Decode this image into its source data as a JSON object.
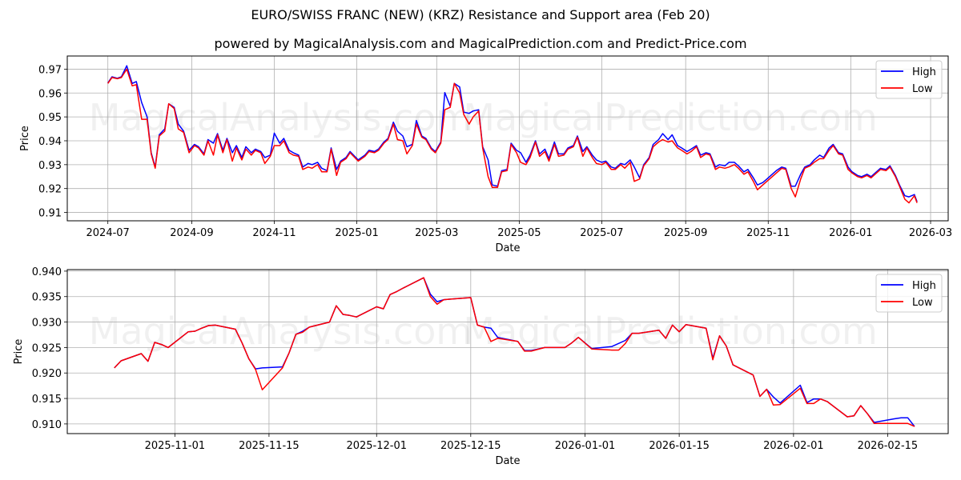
{
  "header": {
    "title": "EURO/SWISS FRANC (NEW) (KRZ) Resistance and Support area (Feb 20)",
    "subtitle": "powered by MagicalAnalysis.com and MagicalPrediction.com and Predict-Price.com"
  },
  "watermarks": [
    "MagicalAnalysis.com",
    "MagicalPrediction.com"
  ],
  "colors": {
    "high": "#0000ff",
    "low": "#ff0000",
    "grid": "#b0b0b0"
  },
  "chart_data": [
    {
      "type": "line",
      "title": "Full history",
      "xlabel": "Date",
      "ylabel": "Price",
      "grid": true,
      "legend_position": "upper right",
      "ylim": [
        0.9065,
        0.9755
      ],
      "xlim": [
        "2024-06-01",
        "2026-03-14"
      ],
      "x_ticks": [
        "2024-07",
        "2024-09",
        "2024-11",
        "2025-01",
        "2025-03",
        "2025-05",
        "2025-07",
        "2025-09",
        "2025-11",
        "2026-01",
        "2026-03"
      ],
      "y_ticks": [
        "0.91",
        "0.92",
        "0.93",
        "0.94",
        "0.95",
        "0.96",
        "0.97"
      ],
      "x": [
        "2024-07-01",
        "2024-07-04",
        "2024-07-08",
        "2024-07-11",
        "2024-07-15",
        "2024-07-19",
        "2024-07-22",
        "2024-07-26",
        "2024-07-30",
        "2024-08-02",
        "2024-08-05",
        "2024-08-08",
        "2024-08-12",
        "2024-08-15",
        "2024-08-19",
        "2024-08-22",
        "2024-08-26",
        "2024-08-30",
        "2024-09-03",
        "2024-09-06",
        "2024-09-10",
        "2024-09-13",
        "2024-09-17",
        "2024-09-20",
        "2024-09-24",
        "2024-09-27",
        "2024-10-01",
        "2024-10-04",
        "2024-10-08",
        "2024-10-11",
        "2024-10-15",
        "2024-10-18",
        "2024-10-22",
        "2024-10-25",
        "2024-10-29",
        "2024-11-01",
        "2024-11-05",
        "2024-11-08",
        "2024-11-12",
        "2024-11-15",
        "2024-11-19",
        "2024-11-22",
        "2024-11-26",
        "2024-11-29",
        "2024-12-03",
        "2024-12-06",
        "2024-12-10",
        "2024-12-13",
        "2024-12-17",
        "2024-12-20",
        "2024-12-24",
        "2024-12-27",
        "2025-01-02",
        "2025-01-07",
        "2025-01-10",
        "2025-01-14",
        "2025-01-17",
        "2025-01-21",
        "2025-01-24",
        "2025-01-28",
        "2025-01-31",
        "2025-02-04",
        "2025-02-07",
        "2025-02-11",
        "2025-02-14",
        "2025-02-18",
        "2025-02-21",
        "2025-02-25",
        "2025-02-28",
        "2025-03-04",
        "2025-03-07",
        "2025-03-11",
        "2025-03-14",
        "2025-03-18",
        "2025-03-21",
        "2025-03-25",
        "2025-03-28",
        "2025-04-01",
        "2025-04-04",
        "2025-04-08",
        "2025-04-11",
        "2025-04-15",
        "2025-04-18",
        "2025-04-22",
        "2025-04-25",
        "2025-04-29",
        "2025-05-02",
        "2025-05-06",
        "2025-05-09",
        "2025-05-13",
        "2025-05-16",
        "2025-05-20",
        "2025-05-23",
        "2025-05-27",
        "2025-05-30",
        "2025-06-03",
        "2025-06-06",
        "2025-06-10",
        "2025-06-13",
        "2025-06-17",
        "2025-06-20",
        "2025-06-24",
        "2025-06-27",
        "2025-07-01",
        "2025-07-04",
        "2025-07-08",
        "2025-07-11",
        "2025-07-15",
        "2025-07-18",
        "2025-07-22",
        "2025-07-25",
        "2025-07-29",
        "2025-08-01",
        "2025-08-05",
        "2025-08-08",
        "2025-08-12",
        "2025-08-15",
        "2025-08-19",
        "2025-08-22",
        "2025-08-26",
        "2025-08-29",
        "2025-09-02",
        "2025-09-05",
        "2025-09-09",
        "2025-09-12",
        "2025-09-16",
        "2025-09-19",
        "2025-09-23",
        "2025-09-26",
        "2025-09-30",
        "2025-10-03",
        "2025-10-07",
        "2025-10-10",
        "2025-10-14",
        "2025-10-17",
        "2025-10-21",
        "2025-10-24",
        "2025-10-28",
        "2025-10-31",
        "2025-11-04",
        "2025-11-07",
        "2025-11-11",
        "2025-11-14",
        "2025-11-18",
        "2025-11-21",
        "2025-11-25",
        "2025-11-28",
        "2025-12-02",
        "2025-12-05",
        "2025-12-09",
        "2025-12-12",
        "2025-12-16",
        "2025-12-19",
        "2025-12-23",
        "2025-12-26",
        "2025-12-30",
        "2026-01-02",
        "2026-01-06",
        "2026-01-09",
        "2026-01-13",
        "2026-01-16",
        "2026-01-20",
        "2026-01-23",
        "2026-01-27",
        "2026-01-30",
        "2026-02-03",
        "2026-02-06",
        "2026-02-10",
        "2026-02-13",
        "2026-02-17",
        "2026-02-19"
      ],
      "series": [
        {
          "name": "High",
          "color": "#0000ff",
          "values": [
            0.9642,
            0.9668,
            0.9662,
            0.9668,
            0.9714,
            0.964,
            0.9648,
            0.956,
            0.95,
            0.935,
            0.929,
            0.9425,
            0.945,
            0.9555,
            0.954,
            0.947,
            0.944,
            0.936,
            0.9385,
            0.9375,
            0.9345,
            0.9405,
            0.939,
            0.943,
            0.936,
            0.941,
            0.935,
            0.938,
            0.933,
            0.9375,
            0.935,
            0.9365,
            0.9355,
            0.933,
            0.934,
            0.9432,
            0.939,
            0.941,
            0.936,
            0.935,
            0.934,
            0.929,
            0.9305,
            0.93,
            0.931,
            0.9285,
            0.9275,
            0.937,
            0.928,
            0.9315,
            0.933,
            0.9355,
            0.932,
            0.934,
            0.936,
            0.9355,
            0.9365,
            0.9395,
            0.941,
            0.9478,
            0.944,
            0.942,
            0.9375,
            0.9385,
            0.9485,
            0.942,
            0.941,
            0.937,
            0.9355,
            0.9395,
            0.9602,
            0.9545,
            0.964,
            0.9625,
            0.952,
            0.9515,
            0.9525,
            0.953,
            0.9375,
            0.932,
            0.9215,
            0.921,
            0.9275,
            0.928,
            0.939,
            0.936,
            0.935,
            0.931,
            0.934,
            0.94,
            0.9345,
            0.9365,
            0.9325,
            0.9395,
            0.9345,
            0.9345,
            0.937,
            0.938,
            0.942,
            0.9355,
            0.9375,
            0.934,
            0.932,
            0.931,
            0.9315,
            0.929,
            0.9285,
            0.9305,
            0.93,
            0.932,
            0.929,
            0.9245,
            0.93,
            0.933,
            0.9385,
            0.9405,
            0.943,
            0.9405,
            0.9425,
            0.938,
            0.937,
            0.9355,
            0.9365,
            0.938,
            0.934,
            0.935,
            0.9345,
            0.929,
            0.93,
            0.9295,
            0.931,
            0.931,
            0.9295,
            0.927,
            0.928,
            0.9245,
            0.9215,
            0.9225,
            0.924,
            0.926,
            0.9275,
            0.929,
            0.9285,
            0.921,
            0.921,
            0.926,
            0.929,
            0.93,
            0.932,
            0.934,
            0.933,
            0.937,
            0.9385,
            0.935,
            0.9345,
            0.929,
            0.927,
            0.9255,
            0.925,
            0.926,
            0.925,
            0.927,
            0.9285,
            0.928,
            0.9295,
            0.9255,
            0.9215,
            0.917,
            0.9165,
            0.9175,
            0.9145,
            0.9125,
            0.911,
            0.9112,
            0.91
          ]
        },
        {
          "name": "Low",
          "color": "#ff0000",
          "values": [
            0.964,
            0.9665,
            0.966,
            0.9665,
            0.97,
            0.963,
            0.9635,
            0.949,
            0.949,
            0.9345,
            0.9285,
            0.942,
            0.944,
            0.9555,
            0.9535,
            0.945,
            0.9435,
            0.935,
            0.938,
            0.937,
            0.934,
            0.94,
            0.934,
            0.9425,
            0.935,
            0.9405,
            0.9315,
            0.937,
            0.932,
            0.9365,
            0.934,
            0.936,
            0.935,
            0.9305,
            0.9335,
            0.938,
            0.938,
            0.94,
            0.935,
            0.934,
            0.9335,
            0.928,
            0.929,
            0.9285,
            0.93,
            0.927,
            0.927,
            0.9365,
            0.9255,
            0.931,
            0.9325,
            0.935,
            0.9315,
            0.9335,
            0.9355,
            0.935,
            0.936,
            0.939,
            0.9405,
            0.947,
            0.9405,
            0.94,
            0.9345,
            0.938,
            0.947,
            0.9415,
            0.9405,
            0.9365,
            0.935,
            0.939,
            0.953,
            0.954,
            0.964,
            0.96,
            0.951,
            0.947,
            0.95,
            0.9525,
            0.937,
            0.925,
            0.9205,
            0.9205,
            0.927,
            0.9275,
            0.9385,
            0.935,
            0.931,
            0.93,
            0.933,
            0.9395,
            0.9335,
            0.9355,
            0.9315,
            0.9385,
            0.9335,
            0.934,
            0.9365,
            0.9375,
            0.9415,
            0.9335,
            0.937,
            0.933,
            0.9305,
            0.93,
            0.931,
            0.928,
            0.928,
            0.93,
            0.9285,
            0.931,
            0.923,
            0.924,
            0.9295,
            0.9325,
            0.9375,
            0.9395,
            0.9405,
            0.9395,
            0.94,
            0.937,
            0.936,
            0.9345,
            0.9355,
            0.9375,
            0.933,
            0.9345,
            0.934,
            0.928,
            0.929,
            0.9285,
            0.929,
            0.93,
            0.9285,
            0.926,
            0.927,
            0.923,
            0.9195,
            0.9215,
            0.923,
            0.925,
            0.9265,
            0.9285,
            0.928,
            0.92,
            0.9165,
            0.924,
            0.9285,
            0.9295,
            0.931,
            0.9325,
            0.9325,
            0.936,
            0.938,
            0.9345,
            0.934,
            0.928,
            0.9265,
            0.925,
            0.9245,
            0.9255,
            0.9245,
            0.9265,
            0.928,
            0.9275,
            0.929,
            0.925,
            0.921,
            0.9155,
            0.914,
            0.917,
            0.914,
            0.912,
            0.91,
            0.9102,
            0.9095
          ]
        }
      ]
    },
    {
      "type": "line",
      "title": "Recent detail",
      "xlabel": "Date",
      "ylabel": "Price",
      "grid": true,
      "legend_position": "upper right",
      "ylim": [
        0.9081,
        0.9403
      ],
      "xlim": [
        "2025-10-16",
        "2026-02-24"
      ],
      "x_ticks": [
        "2025-11-01",
        "2025-11-15",
        "2025-12-01",
        "2025-12-15",
        "2026-01-01",
        "2026-01-15",
        "2026-02-01",
        "2026-02-15"
      ],
      "y_ticks": [
        "0.910",
        "0.915",
        "0.920",
        "0.925",
        "0.930",
        "0.935",
        "0.940"
      ],
      "x": [
        "2025-10-23",
        "2025-10-24",
        "2025-10-27",
        "2025-10-28",
        "2025-10-29",
        "2025-10-30",
        "2025-10-31",
        "2025-11-03",
        "2025-11-04",
        "2025-11-05",
        "2025-11-06",
        "2025-11-07",
        "2025-11-10",
        "2025-11-11",
        "2025-11-12",
        "2025-11-13",
        "2025-11-14",
        "2025-11-17",
        "2025-11-18",
        "2025-11-19",
        "2025-11-20",
        "2025-11-21",
        "2025-11-24",
        "2025-11-25",
        "2025-11-26",
        "2025-11-27",
        "2025-11-28",
        "2025-12-01",
        "2025-12-02",
        "2025-12-03",
        "2025-12-04",
        "2025-12-05",
        "2025-12-08",
        "2025-12-09",
        "2025-12-10",
        "2025-12-11",
        "2025-12-12",
        "2025-12-15",
        "2025-12-16",
        "2025-12-17",
        "2025-12-18",
        "2025-12-19",
        "2025-12-22",
        "2025-12-23",
        "2025-12-24",
        "2025-12-26",
        "2025-12-29",
        "2025-12-30",
        "2025-12-31",
        "2026-01-02",
        "2026-01-05",
        "2026-01-06",
        "2026-01-07",
        "2026-01-08",
        "2026-01-09",
        "2026-01-12",
        "2026-01-13",
        "2026-01-14",
        "2026-01-15",
        "2026-01-16",
        "2026-01-19",
        "2026-01-20",
        "2026-01-21",
        "2026-01-22",
        "2026-01-23",
        "2026-01-26",
        "2026-01-27",
        "2026-01-28",
        "2026-01-29",
        "2026-01-30",
        "2026-02-02",
        "2026-02-03",
        "2026-02-04",
        "2026-02-05",
        "2026-02-06",
        "2026-02-09",
        "2026-02-10",
        "2026-02-11",
        "2026-02-12",
        "2026-02-13",
        "2026-02-16",
        "2026-02-17",
        "2026-02-18",
        "2026-02-19"
      ],
      "series": [
        {
          "name": "High",
          "color": "#0000ff",
          "values": [
            0.921,
            0.9224,
            0.9238,
            0.9223,
            0.926,
            0.9256,
            0.925,
            0.9281,
            0.9282,
            0.9288,
            0.9293,
            0.9294,
            0.9286,
            0.9259,
            0.9228,
            0.9208,
            0.921,
            0.9212,
            0.924,
            0.9276,
            0.9282,
            0.929,
            0.93,
            0.9332,
            0.9315,
            0.9313,
            0.931,
            0.933,
            0.9326,
            0.9354,
            0.936,
            0.9367,
            0.9387,
            0.9355,
            0.934,
            0.9344,
            0.9345,
            0.9348,
            0.9294,
            0.929,
            0.9288,
            0.927,
            0.9262,
            0.9244,
            0.9244,
            0.925,
            0.925,
            0.9259,
            0.927,
            0.9248,
            0.9252,
            0.9258,
            0.9264,
            0.9278,
            0.9278,
            0.9284,
            0.9268,
            0.9294,
            0.9281,
            0.9295,
            0.9288,
            0.9229,
            0.9273,
            0.9253,
            0.9216,
            0.9196,
            0.9154,
            0.9168,
            0.9153,
            0.9141,
            0.9176,
            0.9142,
            0.9149,
            0.9149,
            0.9144,
            0.9114,
            0.9116,
            0.9136,
            0.912,
            0.9103,
            0.911,
            0.9112,
            0.9112,
            0.9095
          ]
        },
        {
          "name": "Low",
          "color": "#ff0000",
          "values": [
            0.921,
            0.9224,
            0.9238,
            0.9223,
            0.926,
            0.9256,
            0.925,
            0.9281,
            0.9282,
            0.9288,
            0.9293,
            0.9294,
            0.9286,
            0.9259,
            0.9228,
            0.9207,
            0.9167,
            0.921,
            0.924,
            0.9276,
            0.928,
            0.929,
            0.93,
            0.9332,
            0.9315,
            0.9313,
            0.931,
            0.933,
            0.9326,
            0.9354,
            0.936,
            0.9367,
            0.9387,
            0.935,
            0.9335,
            0.9344,
            0.9345,
            0.9348,
            0.9294,
            0.929,
            0.9262,
            0.9268,
            0.9262,
            0.9243,
            0.9243,
            0.925,
            0.925,
            0.9259,
            0.927,
            0.9247,
            0.9245,
            0.9245,
            0.9258,
            0.9278,
            0.9278,
            0.9284,
            0.9268,
            0.9294,
            0.9281,
            0.9295,
            0.9288,
            0.9226,
            0.9273,
            0.9253,
            0.9216,
            0.9196,
            0.9154,
            0.9168,
            0.9137,
            0.9138,
            0.917,
            0.914,
            0.914,
            0.9149,
            0.9144,
            0.9114,
            0.9116,
            0.9136,
            0.912,
            0.9101,
            0.9101,
            0.9101,
            0.9101,
            0.9095
          ]
        }
      ]
    }
  ]
}
